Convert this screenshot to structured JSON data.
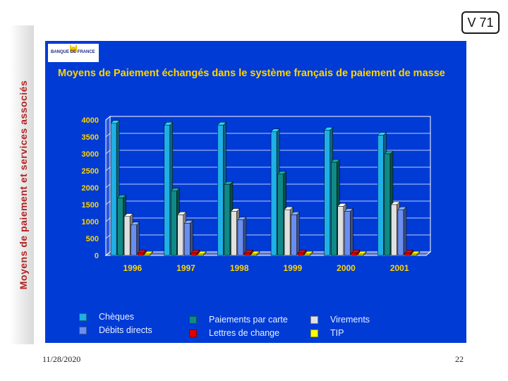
{
  "slide": {
    "side_title": "Moyens de paiement et services associés",
    "code": "V 71",
    "logo_text": "BANQUE DE FRANCE",
    "footer_date": "11/28/2020",
    "footer_page": "22"
  },
  "colors": {
    "panel": "#003bd6",
    "title": "#ffd400",
    "axis_labels": "#ffd400"
  },
  "chart_data": {
    "type": "bar",
    "title": "Moyens de Paiement échangés dans le système français de paiement de masse",
    "xlabel": "",
    "ylabel": "",
    "ylim": [
      0,
      4000
    ],
    "yticks": [
      0,
      500,
      1000,
      1500,
      2000,
      2500,
      3000,
      3500,
      4000
    ],
    "grid": true,
    "legend_position": "bottom",
    "categories": [
      "1996",
      "1997",
      "1998",
      "1999",
      "2000",
      "2001"
    ],
    "series": [
      {
        "name": "Chèques",
        "color": "#1fb0e6",
        "values": [
          3900,
          3850,
          3850,
          3650,
          3700,
          3550
        ]
      },
      {
        "name": "Paiements par carte",
        "color": "#0f8a86",
        "values": [
          1700,
          1900,
          2100,
          2400,
          2750,
          3000
        ]
      },
      {
        "name": "Virements",
        "color": "#e0e0e0",
        "values": [
          1150,
          1200,
          1300,
          1350,
          1450,
          1500
        ]
      },
      {
        "name": "Débits directs",
        "color": "#6a8ef0",
        "values": [
          900,
          950,
          1050,
          1200,
          1300,
          1350
        ]
      },
      {
        "name": "Lettres de change",
        "color": "#e00000",
        "values": [
          70,
          70,
          70,
          70,
          70,
          70
        ]
      },
      {
        "name": "TIP",
        "color": "#ffff00",
        "values": [
          40,
          40,
          40,
          40,
          40,
          40
        ]
      }
    ]
  }
}
